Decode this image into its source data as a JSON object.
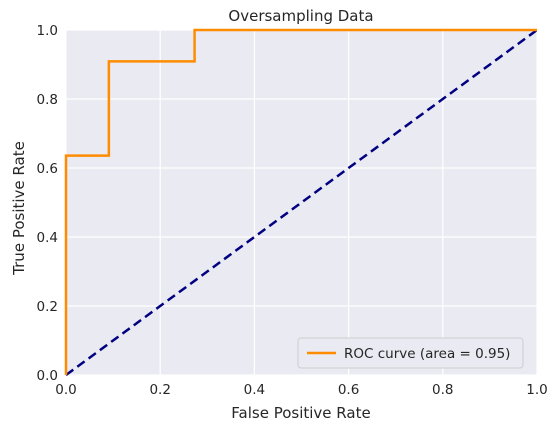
{
  "chart_data": {
    "type": "line",
    "title": "Oversampling Data",
    "xlabel": "False Positive Rate",
    "ylabel": "True Positive Rate",
    "xlim": [
      0.0,
      1.0
    ],
    "ylim": [
      0.0,
      1.0
    ],
    "xticks": [
      "0.0",
      "0.2",
      "0.4",
      "0.6",
      "0.8",
      "1.0"
    ],
    "yticks": [
      "0.0",
      "0.2",
      "0.4",
      "0.6",
      "0.8",
      "1.0"
    ],
    "grid": true,
    "legend_position": "lower-right",
    "series": [
      {
        "name": "ROC curve (area = 0.95)",
        "style": "solid",
        "color": "#ff8c00",
        "x": [
          0.0,
          0.0,
          0.091,
          0.091,
          0.273,
          0.273,
          1.0
        ],
        "y": [
          0.0,
          0.636,
          0.636,
          0.909,
          0.909,
          1.0,
          1.0
        ]
      },
      {
        "style": "dashed",
        "color": "#000080",
        "x": [
          0.0,
          1.0
        ],
        "y": [
          0.0,
          1.0
        ]
      }
    ],
    "colors": {
      "plot_background": "#eaeaf2",
      "grid": "#ffffff",
      "text": "#262626"
    }
  }
}
